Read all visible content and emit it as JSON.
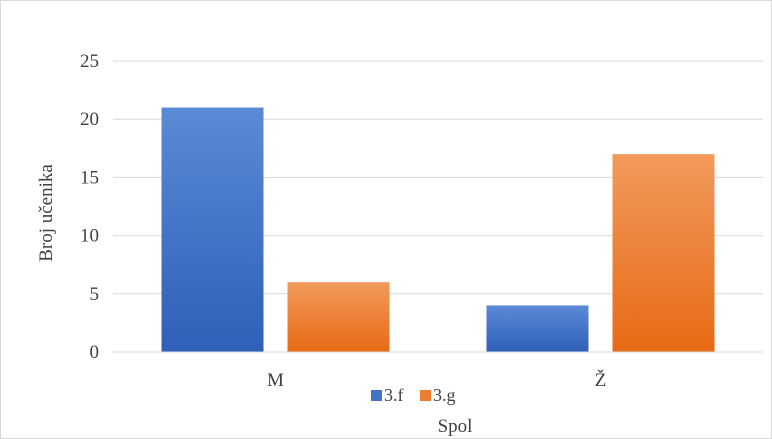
{
  "chart_data": {
    "type": "bar",
    "title": "",
    "categories": [
      "M",
      "Ž"
    ],
    "series": [
      {
        "name": "3.f",
        "values": [
          21,
          4
        ],
        "color": "#4472c4"
      },
      {
        "name": "3.g",
        "values": [
          6,
          17
        ],
        "color": "#ed7d31"
      }
    ],
    "xlabel": "Spol",
    "ylabel": "Broj učenika",
    "ylim": [
      0,
      25
    ],
    "yticks": [
      0,
      5,
      10,
      15,
      20,
      25
    ],
    "grid": true,
    "legend_position": "bottom"
  }
}
